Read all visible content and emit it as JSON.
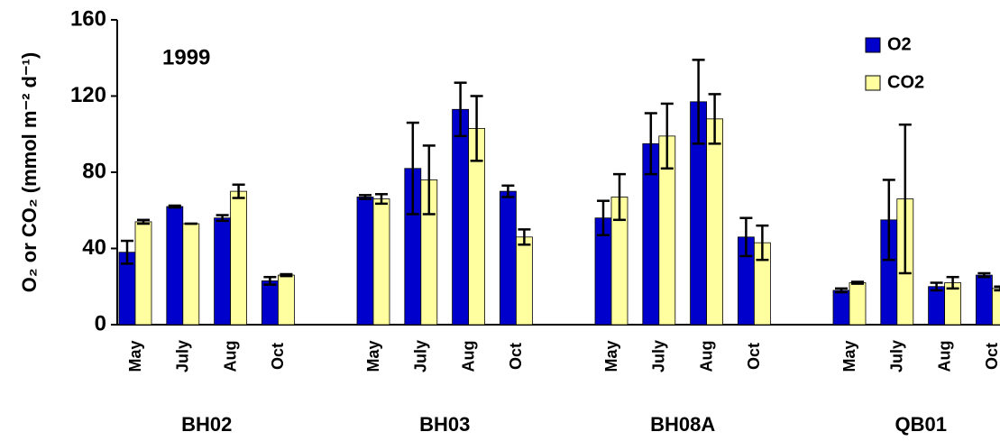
{
  "chart_data": {
    "type": "bar",
    "annotation": "1999",
    "y_label": "O₂ or CO₂ (mmol m⁻² d⁻¹)",
    "categories": [
      "May",
      "July",
      "Aug",
      "Oct",
      null,
      "May",
      "July",
      "Aug",
      "Oct",
      null,
      "May",
      "July",
      "Aug",
      "Oct",
      null,
      "May",
      "July",
      "Aug",
      "Oct"
    ],
    "groups": [
      "BH02",
      "BH03",
      "BH08A",
      "QB01"
    ],
    "series": [
      {
        "name": "O2",
        "color": "#0000cc",
        "values": [
          38,
          62,
          56,
          23,
          null,
          67,
          82,
          113,
          70,
          null,
          56,
          95,
          117,
          46,
          null,
          18,
          55,
          20,
          26
        ],
        "errors": [
          6,
          0.5,
          1.5,
          2,
          null,
          1,
          24,
          14,
          3,
          null,
          9,
          16,
          22,
          10,
          null,
          1,
          21,
          2,
          1
        ]
      },
      {
        "name": "CO2",
        "color": "#ffffa0",
        "values": [
          54,
          53,
          70,
          26,
          null,
          66,
          76,
          103,
          46,
          null,
          67,
          99,
          108,
          43,
          null,
          22,
          66,
          22,
          19
        ],
        "errors": [
          1,
          0,
          3.5,
          0.5,
          null,
          2.5,
          18,
          17,
          4,
          null,
          12,
          17,
          13,
          9,
          null,
          0.5,
          39,
          3,
          1
        ]
      }
    ],
    "ylim": [
      0,
      160
    ],
    "yticks": [
      0,
      40,
      80,
      120,
      160
    ],
    "grid": false,
    "legend": "top-right"
  }
}
